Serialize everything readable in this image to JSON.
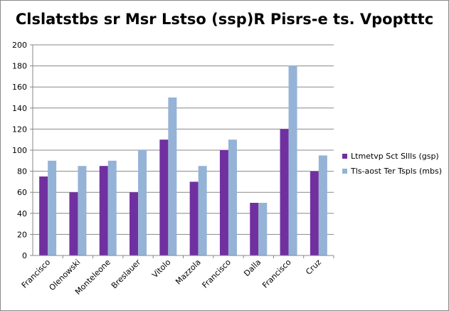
{
  "chart_data": {
    "type": "bar",
    "title": "Clslatstbs sr Msr Lstso (ssp)R Pisrs-e ts. Vpoptttc",
    "xlabel": "",
    "ylabel": "",
    "ylim": [
      0,
      200
    ],
    "yticks": [
      0,
      20,
      40,
      60,
      80,
      100,
      120,
      140,
      160,
      180,
      200
    ],
    "grid": true,
    "legend_position": "right",
    "categories": [
      "Francisco",
      "Olenowski",
      "Monteleone",
      "Breslauer",
      "Vitolo",
      "Mazzola",
      "Francisco",
      "Dalla",
      "Francisco",
      "Cruz"
    ],
    "series": [
      {
        "name": "Ltmetvp Sct Sllls (gsp)",
        "color": "#7030a0",
        "values": [
          75,
          60,
          85,
          60,
          110,
          70,
          100,
          50,
          120,
          80
        ]
      },
      {
        "name": "Tls-aost Ter Tspls (mbs)",
        "color": "#95b3d7",
        "values": [
          90,
          85,
          90,
          100,
          150,
          85,
          110,
          50,
          180,
          95
        ]
      }
    ]
  }
}
